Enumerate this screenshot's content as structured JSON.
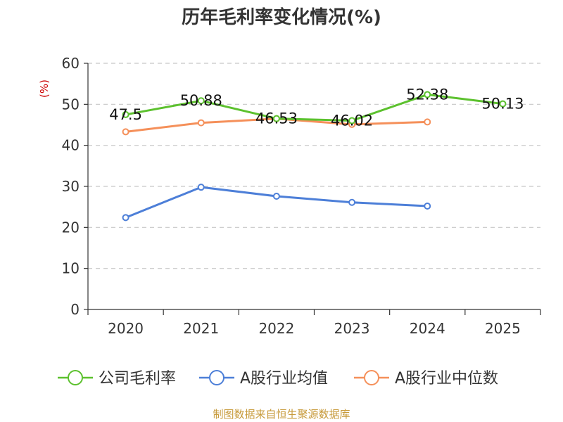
{
  "chart_data": {
    "type": "line",
    "title": "历年毛利率变化情况(%)",
    "unit_label": "(%)",
    "categories": [
      "2020",
      "2021",
      "2022",
      "2023",
      "2024",
      "2025"
    ],
    "ylim": [
      0,
      60
    ],
    "yticks": [
      0,
      10,
      20,
      30,
      40,
      50,
      60
    ],
    "grid": true,
    "legend_position": "bottom",
    "series": [
      {
        "name": "公司毛利率",
        "color": "#5cc12e",
        "values": [
          47.5,
          50.88,
          46.53,
          46.02,
          52.38,
          50.13
        ],
        "labels": [
          "47.5",
          "50.88",
          "46.53",
          "46.02",
          "52.38",
          "50.13"
        ]
      },
      {
        "name": "A股行业均值",
        "color": "#4d7fd8",
        "values": [
          22.4,
          29.8,
          27.6,
          26.1,
          25.2,
          null
        ]
      },
      {
        "name": "A股行业中位数",
        "color": "#f5905a",
        "values": [
          43.3,
          45.5,
          46.5,
          45.1,
          45.7,
          null
        ]
      }
    ]
  },
  "source_text": "制图数据来自恒生聚源数据库"
}
